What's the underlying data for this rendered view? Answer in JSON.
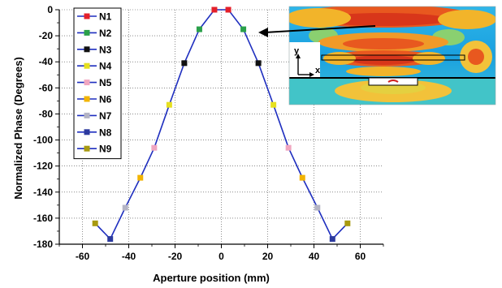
{
  "chart_data": {
    "type": "line",
    "title": "",
    "xlabel": "Aperture position (mm)",
    "ylabel": "Normalized Phase (Degrees)",
    "xlim": [
      -70,
      70
    ],
    "ylim": [
      -180,
      0
    ],
    "xticks": [
      -60,
      -40,
      -20,
      0,
      20,
      40,
      60
    ],
    "yticks": [
      0,
      -20,
      -40,
      -60,
      -80,
      -100,
      -120,
      -140,
      -160,
      -180
    ],
    "grid": "dotted",
    "legend_position": "top-left",
    "line_color": "#1f2fbf",
    "series": [
      {
        "name": "N1",
        "color": "#e4202a",
        "marker": "square",
        "x": [
          -3,
          3
        ],
        "y": [
          0,
          0
        ]
      },
      {
        "name": "N2",
        "color": "#2aa04a",
        "marker": "square",
        "x": [
          -9.5,
          9.5
        ],
        "y": [
          -15,
          -15
        ]
      },
      {
        "name": "N3",
        "color": "#111111",
        "marker": "square",
        "x": [
          -16,
          16
        ],
        "y": [
          -41,
          -41
        ]
      },
      {
        "name": "N4",
        "color": "#e6e020",
        "marker": "square",
        "x": [
          -22.5,
          22.5
        ],
        "y": [
          -73,
          -73
        ]
      },
      {
        "name": "N5",
        "color": "#f0a6c0",
        "marker": "square",
        "x": [
          -29,
          29
        ],
        "y": [
          -106,
          -106
        ]
      },
      {
        "name": "N6",
        "color": "#f2b400",
        "marker": "square",
        "x": [
          -35,
          35
        ],
        "y": [
          -129,
          -129
        ]
      },
      {
        "name": "N7",
        "color": "#b4b4c4",
        "marker": "square",
        "x": [
          -41.5,
          41.5
        ],
        "y": [
          -152,
          -152
        ]
      },
      {
        "name": "N8",
        "color": "#2c3a9e",
        "marker": "square",
        "x": [
          -48,
          48
        ],
        "y": [
          -176,
          -176
        ]
      },
      {
        "name": "N9",
        "color": "#a89a10",
        "marker": "square",
        "x": [
          -54.5,
          54.5
        ],
        "y": [
          -164,
          -164
        ]
      }
    ],
    "curve": {
      "x": [
        -54.5,
        -48,
        -41.5,
        -35,
        -29,
        -22.5,
        -16,
        -9.5,
        -3,
        3,
        9.5,
        16,
        22.5,
        29,
        35,
        41.5,
        48,
        54.5
      ],
      "y": [
        -164,
        -176,
        -152,
        -129,
        -106,
        -73,
        -41,
        -15,
        0,
        0,
        -15,
        -41,
        -73,
        -106,
        -129,
        -152,
        -176,
        -164
      ]
    },
    "inset": {
      "axis_labels": [
        "y",
        "x"
      ],
      "description_colors": [
        "#e04020",
        "#f0c020",
        "#40c0e0",
        "#30a0e0"
      ]
    }
  }
}
